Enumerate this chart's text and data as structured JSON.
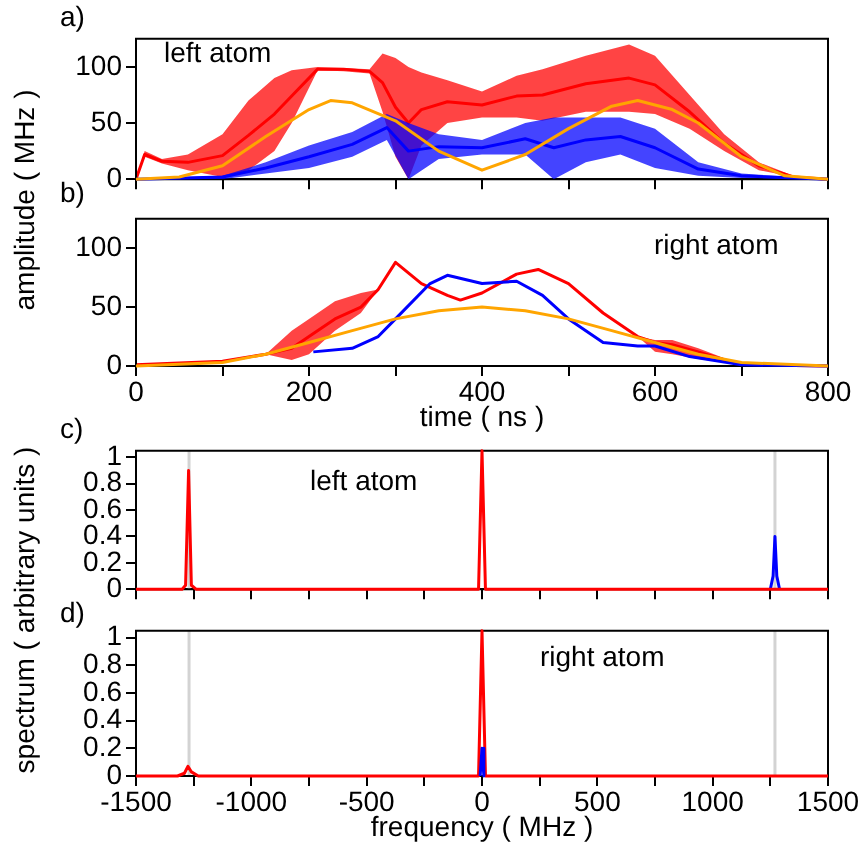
{
  "chart_data": [
    {
      "type": "line",
      "title": "a)",
      "ylabel": "amplitude ( MHz )",
      "annotations": [
        "left atom"
      ],
      "xlim": [
        0,
        800
      ],
      "xticks": [
        {
          "value": 0,
          "label": null
        },
        {
          "value": 100,
          "label": null
        },
        {
          "value": 200,
          "label": null
        },
        {
          "value": 300,
          "label": null
        },
        {
          "value": 400,
          "label": null
        },
        {
          "value": 500,
          "label": null
        },
        {
          "value": 600,
          "label": null
        },
        {
          "value": 700,
          "label": null
        },
        {
          "value": 800,
          "label": null
        }
      ],
      "ylim": [
        0,
        125
      ],
      "yticks": [
        0,
        50,
        100
      ],
      "tick_labels": "y",
      "marker": "none",
      "series": [
        {
          "color": "#ff0000",
          "x": [
            0,
            10,
            30,
            60,
            100,
            130,
            160,
            180,
            210,
            240,
            270,
            285,
            300,
            315,
            330,
            360,
            400,
            440,
            470,
            520,
            570,
            600,
            640,
            680,
            720,
            760,
            800
          ],
          "values": [
            0,
            22,
            16,
            15,
            21,
            39,
            58,
            74,
            98,
            98,
            96,
            86,
            64,
            50,
            62,
            69,
            66,
            74,
            75,
            85,
            90,
            84,
            60,
            32,
            12,
            2,
            0
          ],
          "lower": [
            0,
            20,
            14,
            8,
            2,
            8,
            25,
            50,
            97,
            96,
            94,
            60,
            20,
            0,
            30,
            50,
            55,
            55,
            52,
            60,
            60,
            58,
            45,
            25,
            8,
            2,
            0
          ],
          "upper": [
            0,
            25,
            18,
            22,
            40,
            70,
            90,
            97,
            100,
            99,
            98,
            112,
            108,
            100,
            95,
            88,
            78,
            92,
            98,
            110,
            120,
            110,
            75,
            40,
            15,
            3,
            0
          ]
        },
        {
          "color": "#0000ff",
          "x": [
            0,
            100,
            150,
            200,
            250,
            290,
            315,
            350,
            400,
            450,
            483,
            520,
            560,
            600,
            650,
            700,
            800
          ],
          "values": [
            0,
            2,
            10,
            20,
            31,
            46,
            25,
            29,
            28,
            36,
            28,
            35,
            38,
            28,
            9,
            3,
            0
          ],
          "lower": [
            0,
            0,
            5,
            10,
            20,
            35,
            0,
            18,
            22,
            22,
            0,
            15,
            22,
            10,
            3,
            1,
            0
          ],
          "upper": [
            0,
            3,
            15,
            30,
            42,
            58,
            50,
            40,
            35,
            50,
            55,
            55,
            55,
            45,
            15,
            5,
            0
          ]
        },
        {
          "color": "#ffa500",
          "x": [
            0,
            50,
            100,
            150,
            200,
            225,
            250,
            300,
            350,
            400,
            450,
            500,
            550,
            580,
            620,
            650,
            700,
            750,
            800
          ],
          "values": [
            0,
            2,
            12,
            38,
            62,
            70,
            68,
            52,
            25,
            8,
            22,
            45,
            65,
            70,
            62,
            50,
            20,
            3,
            0
          ]
        }
      ]
    },
    {
      "type": "line",
      "title": "b)",
      "xlabel": "time ( ns )",
      "annotations": [
        "right atom"
      ],
      "xlim": [
        0,
        800
      ],
      "xticks": [
        0,
        {
          "value": 100,
          "label": null
        },
        200,
        {
          "value": 300,
          "label": null
        },
        400,
        {
          "value": 500,
          "label": null
        },
        600,
        {
          "value": 700,
          "label": null
        },
        800
      ],
      "ylim": [
        0,
        125
      ],
      "yticks": [
        0,
        50,
        100
      ],
      "marker": "none",
      "series": [
        {
          "color": "#ff0000",
          "x": [
            0,
            100,
            150,
            180,
            200,
            230,
            260,
            280,
            300,
            330,
            360,
            375,
            400,
            440,
            465,
            500,
            540,
            580,
            600,
            620,
            650,
            700,
            800
          ],
          "values": [
            1,
            4,
            10,
            15,
            25,
            40,
            50,
            65,
            88,
            70,
            60,
            56,
            62,
            78,
            82,
            70,
            45,
            25,
            20,
            18,
            12,
            1,
            0
          ],
          "lower": [
            1,
            4,
            10,
            5,
            10,
            30,
            45,
            65,
            88,
            70,
            60,
            56,
            62,
            78,
            82,
            70,
            45,
            25,
            12,
            10,
            6,
            1,
            0
          ],
          "upper": [
            1,
            4,
            10,
            30,
            40,
            55,
            62,
            65,
            88,
            70,
            60,
            56,
            62,
            78,
            82,
            70,
            45,
            25,
            22,
            22,
            15,
            1,
            0
          ]
        },
        {
          "color": "#0000ff",
          "x": [
            205,
            250,
            280,
            300,
            340,
            360,
            400,
            440,
            470,
            500,
            540,
            580,
            600,
            640,
            700,
            800
          ],
          "values": [
            12,
            15,
            25,
            40,
            70,
            77,
            70,
            72,
            60,
            40,
            20,
            17,
            17,
            8,
            1,
            0
          ]
        },
        {
          "color": "#ffa500",
          "x": [
            0,
            100,
            150,
            200,
            250,
            300,
            350,
            400,
            450,
            500,
            550,
            600,
            650,
            700,
            800
          ],
          "values": [
            0,
            3,
            10,
            20,
            30,
            40,
            47,
            50,
            47,
            40,
            30,
            20,
            10,
            3,
            0
          ]
        }
      ]
    },
    {
      "type": "line",
      "title": "c)",
      "ylabel": "spectrum ( arbitrary units )",
      "annotations": [
        "left atom"
      ],
      "xlim": [
        -1500,
        1500
      ],
      "xticks": [
        {
          "value": -1500,
          "label": null
        },
        {
          "value": -1250,
          "label": null
        },
        {
          "value": -1000,
          "label": null
        },
        {
          "value": -750,
          "label": null
        },
        {
          "value": -500,
          "label": null
        },
        {
          "value": -250,
          "label": null
        },
        {
          "value": 0,
          "label": null
        },
        {
          "value": 250,
          "label": null
        },
        {
          "value": 500,
          "label": null
        },
        {
          "value": 750,
          "label": null
        },
        {
          "value": 1000,
          "label": null
        },
        {
          "value": 1250,
          "label": null
        },
        {
          "value": 1500,
          "label": null
        }
      ],
      "ylim": [
        0,
        1.05
      ],
      "yticks": [
        0,
        0.2,
        0.4,
        0.6,
        0.8,
        1
      ],
      "tick_labels": "y",
      "marker": "none",
      "ref_lines": [
        {
          "axis": "x",
          "value": -1270,
          "color": "#d3d3d3"
        },
        {
          "axis": "x",
          "value": 1270,
          "color": "#d3d3d3"
        }
      ],
      "series": [
        {
          "color": "#0000ff",
          "x": [
            1250,
            1262,
            1270,
            1278,
            1290
          ],
          "values": [
            0,
            0.1,
            0.4,
            0.1,
            0
          ]
        },
        {
          "color": "#ff0000",
          "x": [
            -1500,
            -1300,
            -1285,
            -1272,
            -1260,
            -1240,
            -15,
            0,
            15,
            1500
          ],
          "values": [
            0,
            0,
            0.03,
            0.9,
            0.03,
            0,
            0,
            1.05,
            0,
            0
          ]
        }
      ]
    },
    {
      "type": "line",
      "title": "d)",
      "xlabel": "frequency ( MHz )",
      "annotations": [
        "right atom"
      ],
      "xlim": [
        -1500,
        1500
      ],
      "xticks": [
        -1500,
        {
          "value": -1250,
          "label": null
        },
        -1000,
        {
          "value": -750,
          "label": null
        },
        -500,
        {
          "value": -250,
          "label": null
        },
        0,
        {
          "value": 250,
          "label": null
        },
        500,
        {
          "value": 750,
          "label": null
        },
        1000,
        {
          "value": 1250,
          "label": null
        },
        1500
      ],
      "ylim": [
        0,
        1.05
      ],
      "yticks": [
        0,
        0.2,
        0.4,
        0.6,
        0.8,
        1
      ],
      "marker": "none",
      "ref_lines": [
        {
          "axis": "x",
          "value": -1270,
          "color": "#d3d3d3"
        },
        {
          "axis": "x",
          "value": 1270,
          "color": "#d3d3d3"
        }
      ],
      "series": [
        {
          "color": "#ff0000",
          "x": [
            -1500,
            -1320,
            -1290,
            -1275,
            -1260,
            -1230,
            -15,
            0,
            15,
            1500
          ],
          "values": [
            0,
            0,
            0.02,
            0.07,
            0.03,
            0,
            0,
            1.05,
            0,
            0
          ]
        },
        {
          "color": "#0000ff",
          "x": [
            -8,
            0,
            8
          ],
          "values": [
            0,
            0.2,
            0
          ]
        }
      ]
    }
  ]
}
